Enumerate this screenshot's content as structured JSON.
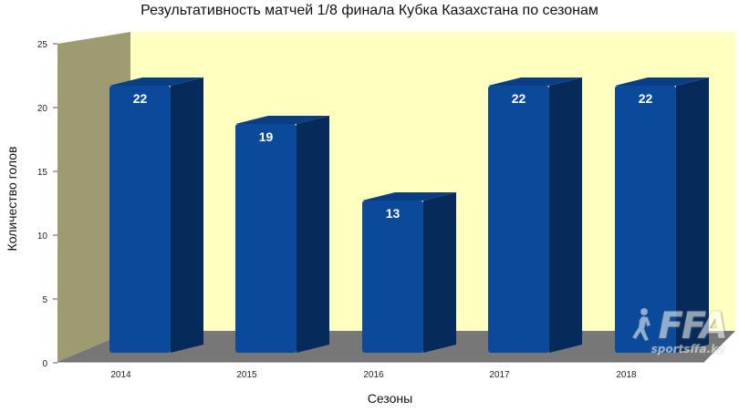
{
  "chart_data": {
    "type": "bar",
    "title": "Результативность матчей 1/8 финала Кубка Казахстана по сезонам",
    "xlabel": "Сезоны",
    "ylabel": "Количество голов",
    "categories": [
      "2014",
      "2015",
      "2016",
      "2017",
      "2018"
    ],
    "values": [
      22,
      19,
      13,
      22,
      22
    ],
    "data_labels": [
      "22",
      "19",
      "13",
      "22",
      "22"
    ],
    "ylim": [
      0,
      25
    ],
    "yticks": [
      "0",
      "5",
      "10",
      "15",
      "20",
      "25"
    ],
    "grid": false,
    "three_d": true,
    "colors": {
      "bar_front": "#0b4a9a",
      "bar_side": "#062a5a",
      "bar_top": "#0a3e84",
      "back_wall": "#ffffc0",
      "side_wall": "#9e9a72",
      "floor": "#777777"
    }
  },
  "watermark": {
    "big_text": "FFA",
    "small_text": "sportsffa.kz"
  }
}
